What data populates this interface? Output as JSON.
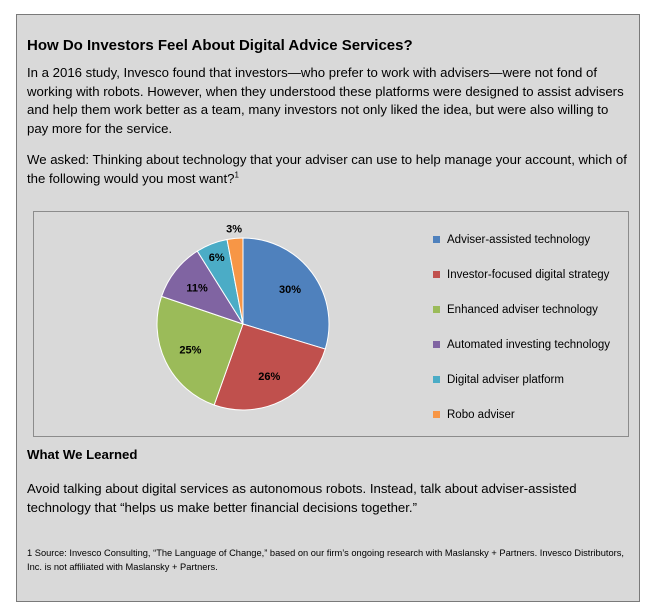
{
  "title": "How Do Investors Feel About Digital Advice Services?",
  "intro": "In a 2016 study, Invesco found that investors—who prefer to work with advisers—were not fond of working with robots. However, when they understood these platforms were designed to assist advisers and help them work better as a team, many investors not only liked the idea, but were also willing to pay more for the service.",
  "question": "We asked: Thinking about technology that your adviser can use to help manage your account, which of the following would you most want?",
  "question_footnote_mark": "1",
  "chart_data": {
    "type": "pie",
    "legend_position": "right",
    "slices": [
      {
        "label": "Adviser-assisted technology",
        "value": 30,
        "value_label": "30%",
        "color": "#4f81bd"
      },
      {
        "label": "Investor-focused digital strategy",
        "value": 26,
        "value_label": "26%",
        "color": "#c0504d"
      },
      {
        "label": "Enhanced adviser technology",
        "value": 25,
        "value_label": "25%",
        "color": "#9bbb59"
      },
      {
        "label": "Automated investing technology",
        "value": 11,
        "value_label": "11%",
        "color": "#8064a2"
      },
      {
        "label": "Digital adviser platform",
        "value": 6,
        "value_label": "6%",
        "color": "#4bacc6"
      },
      {
        "label": "Robo adviser",
        "value": 3,
        "value_label": "3%",
        "color": "#f79646"
      }
    ]
  },
  "learned_heading": "What We Learned",
  "learned_text": "Avoid talking about digital services as autonomous robots. Instead, talk about adviser-assisted technology that “helps us make better financial decisions together.”",
  "footnote": "1 Source: Invesco Consulting, “The Language of Change,” based on our firm’s ongoing research with Maslansky + Partners. Invesco Distributors, Inc. is not affiliated with Maslansky + Partners."
}
